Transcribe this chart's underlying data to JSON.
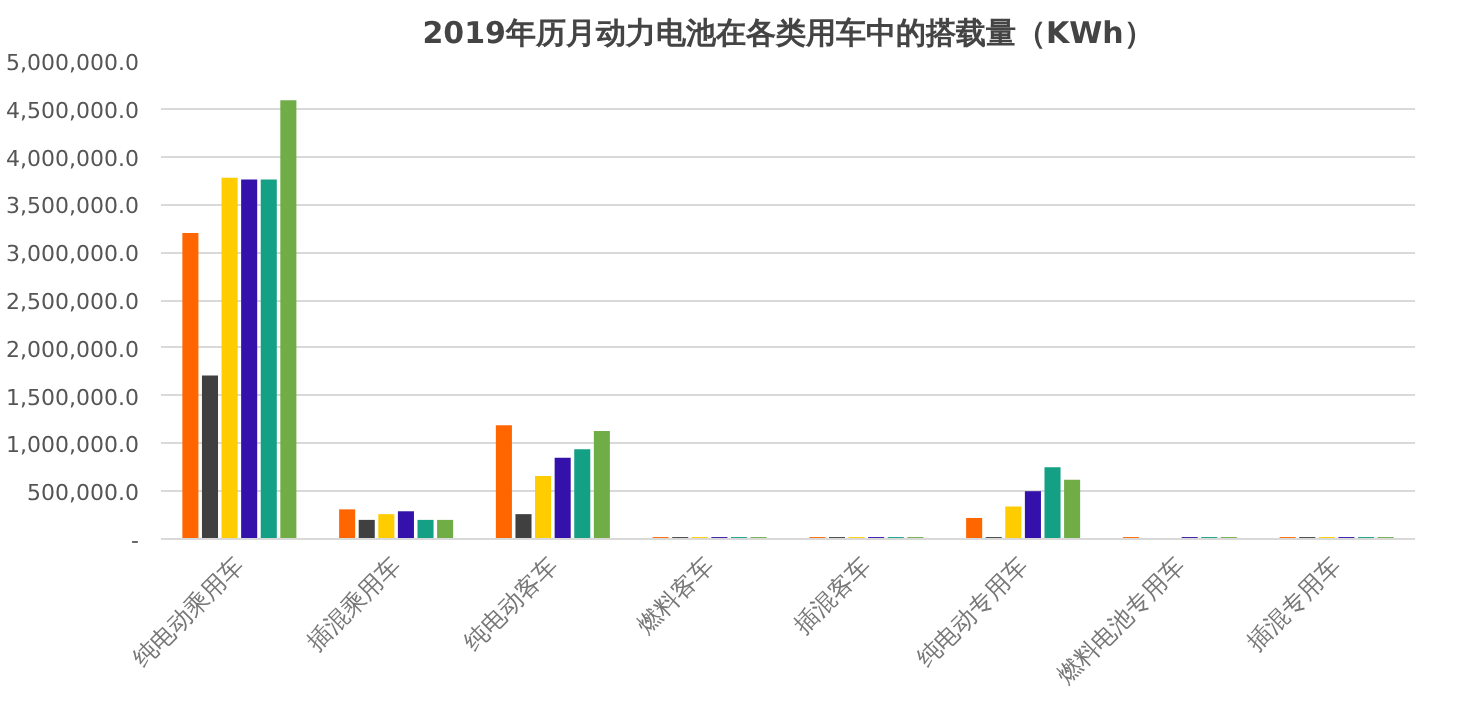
{
  "chart_data": {
    "type": "bar",
    "title": "2019年历月动力电池在各类用车中的搭载量（KWh）",
    "categories": [
      "纯电动乘用车",
      "插混乘用车",
      "纯电动客车",
      "燃料客车",
      "插混客车",
      "纯电动专用车",
      "燃料电池专用车",
      "插混专用车"
    ],
    "series": [
      {
        "color": "#ff6600",
        "values": [
          3200000,
          310000,
          1190000,
          20000,
          20000,
          220000,
          20000,
          20000
        ]
      },
      {
        "color": "#404040",
        "values": [
          1710000,
          200000,
          260000,
          20000,
          20000,
          20000,
          null,
          20000
        ]
      },
      {
        "color": "#ffcc00",
        "values": [
          3780000,
          260000,
          660000,
          20000,
          20000,
          340000,
          null,
          20000
        ]
      },
      {
        "color": "#3311aa",
        "values": [
          3760000,
          290000,
          850000,
          20000,
          20000,
          500000,
          20000,
          20000
        ]
      },
      {
        "color": "#14a085",
        "values": [
          3760000,
          200000,
          940000,
          20000,
          20000,
          750000,
          20000,
          20000
        ]
      },
      {
        "color": "#70ad47",
        "values": [
          4590000,
          200000,
          1130000,
          20000,
          20000,
          620000,
          20000,
          20000
        ]
      }
    ],
    "ylim": [
      0,
      5000000
    ],
    "yticks": [
      {
        "value": 0,
        "label": "-"
      },
      {
        "value": 500000,
        "label": "500,000.0"
      },
      {
        "value": 1000000,
        "label": "1,000,000.0"
      },
      {
        "value": 1500000,
        "label": "1,500,000.0"
      },
      {
        "value": 2000000,
        "label": "2,000,000.0"
      },
      {
        "value": 2500000,
        "label": "2,500,000.0"
      },
      {
        "value": 3000000,
        "label": "3,000,000.0"
      },
      {
        "value": 3500000,
        "label": "3,500,000.0"
      },
      {
        "value": 4000000,
        "label": "4,000,000.0"
      },
      {
        "value": 4500000,
        "label": "4,500,000.0"
      },
      {
        "value": 5000000,
        "label": "5,000,000.0"
      }
    ],
    "grid": "y"
  }
}
